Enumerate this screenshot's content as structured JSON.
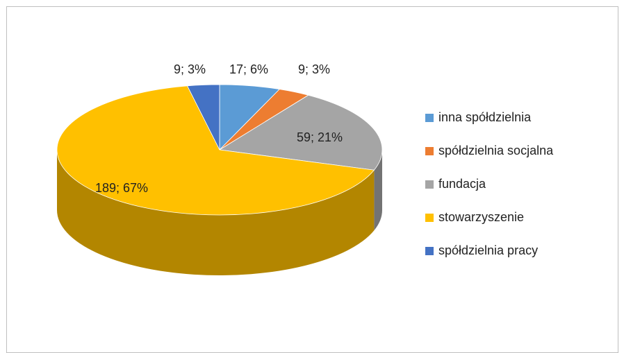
{
  "chart_data": {
    "type": "pie",
    "categories": [
      "inna spółdzielnia",
      "spółdzielnia socjalna",
      "fundacja",
      "stowarzyszenie",
      "spółdzielnia pracy"
    ],
    "values": [
      17,
      9,
      59,
      189,
      9
    ],
    "value_labels": [
      "17; 6%",
      "9; 3%",
      "59; 21%",
      "189; 67%",
      "9; 3%"
    ],
    "colors": [
      "#5b9bd5",
      "#ed7d31",
      "#a5a5a5",
      "#ffc000",
      "#4472c4"
    ],
    "legend": "right"
  }
}
